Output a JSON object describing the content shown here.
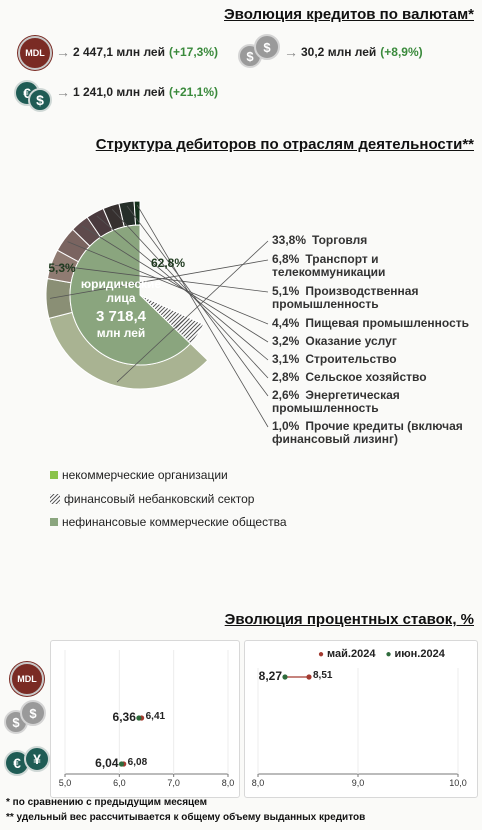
{
  "credits": {
    "title": "Эволюция кредитов по валютам*",
    "mdl": {
      "icon": "MDL",
      "value": "2 447,1 млн лей",
      "change": "(+17,3%)"
    },
    "usd": {
      "value": "30,2 млн лей",
      "change": "(+8,9%)"
    },
    "eur": {
      "value": "1 241,0 млн лей",
      "change": "(+21,1%)"
    }
  },
  "debtors": {
    "title": "Структура дебиторов по отраслям деятельности**",
    "center_label": "юридические лица",
    "center_value": "3 718,4",
    "center_unit": "млн лей",
    "legend": [
      {
        "label": "некоммерческие организации",
        "color": "#8bc34a"
      },
      {
        "label": "финансовый небанковский сектор",
        "color": "#999999"
      },
      {
        "label": "нефинансовые коммерческие общества",
        "color": "#8aa57e"
      }
    ]
  },
  "rates": {
    "title": "Эволюция процентных ставок, %",
    "legend_may": "май.2024",
    "legend_jun": "июн.2024",
    "color_may": "#a33a30",
    "color_jun": "#2f6b3c",
    "left_ticks": [
      "5,0",
      "6,0",
      "7,0",
      "8,0"
    ],
    "right_ticks": [
      "8,0",
      "9,0",
      "10,0"
    ],
    "mdl_icon": "MDL"
  },
  "footnotes": [
    "* по сравнению с предыдущим месяцем",
    "** удельный вес рассчитывается к общему объему выданных кредитов"
  ],
  "chart_data": [
    {
      "type": "pie",
      "subtype": "donut",
      "series": [
        {
          "name": "inner",
          "labels": [
            "нефинансовые коммерческие общества",
            "финансовый небанковский сектор"
          ],
          "values": [
            62.8,
            5.3
          ],
          "value_labels": [
            "62,8%",
            "5,3%"
          ]
        },
        {
          "name": "outer",
          "labels": [
            "Торговля",
            "Транспорт и телекоммуникации",
            "Производственная промышленность",
            "Пищевая промышленность",
            "Оказание услуг",
            "Строительство",
            "Сельское хозяйство",
            "Энергетическая промышленность",
            "Прочие кредиты (включая финансовый лизинг)"
          ],
          "values": [
            33.8,
            6.8,
            5.1,
            4.4,
            3.2,
            3.1,
            2.8,
            2.6,
            1.0
          ],
          "value_labels": [
            "33,8%",
            "6,8%",
            "5,1%",
            "4,4%",
            "3,2%",
            "3,1%",
            "2,8%",
            "2,6%",
            "1,0%"
          ],
          "colors": [
            "#a9b392",
            "#8a8f75",
            "#8f7b72",
            "#7a6460",
            "#5e4a4c",
            "#4a3a3e",
            "#36302f",
            "#262f2a",
            "#12301a"
          ]
        }
      ],
      "label_lines": [
        [
          "Торговля"
        ],
        [
          "Транспорт и",
          "телекоммуникации"
        ],
        [
          "Производственная",
          "промышленность"
        ],
        [
          "Пищевая промышленность"
        ],
        [
          "Оказание услуг"
        ],
        [
          "Строительство"
        ],
        [
          "Сельское хозяйство"
        ],
        [
          "Энергетическая",
          "промышленность"
        ],
        [
          "Прочие кредиты (включая",
          "финансовый лизинг)"
        ]
      ]
    },
    {
      "type": "scatter",
      "categories": [
        "MDL",
        "USD",
        "EUR"
      ],
      "series": [
        {
          "name": "май.2024",
          "values": [
            8.51,
            6.41,
            6.08
          ],
          "value_labels": [
            "8,51",
            "6,41",
            "6,08"
          ]
        },
        {
          "name": "июн.2024",
          "values": [
            8.27,
            6.36,
            6.04
          ],
          "value_labels": [
            "8,27",
            "6,36",
            "6,04"
          ]
        }
      ],
      "xlim_left": [
        5.0,
        8.0
      ],
      "xlim_right": [
        8.0,
        10.0
      ]
    }
  ]
}
